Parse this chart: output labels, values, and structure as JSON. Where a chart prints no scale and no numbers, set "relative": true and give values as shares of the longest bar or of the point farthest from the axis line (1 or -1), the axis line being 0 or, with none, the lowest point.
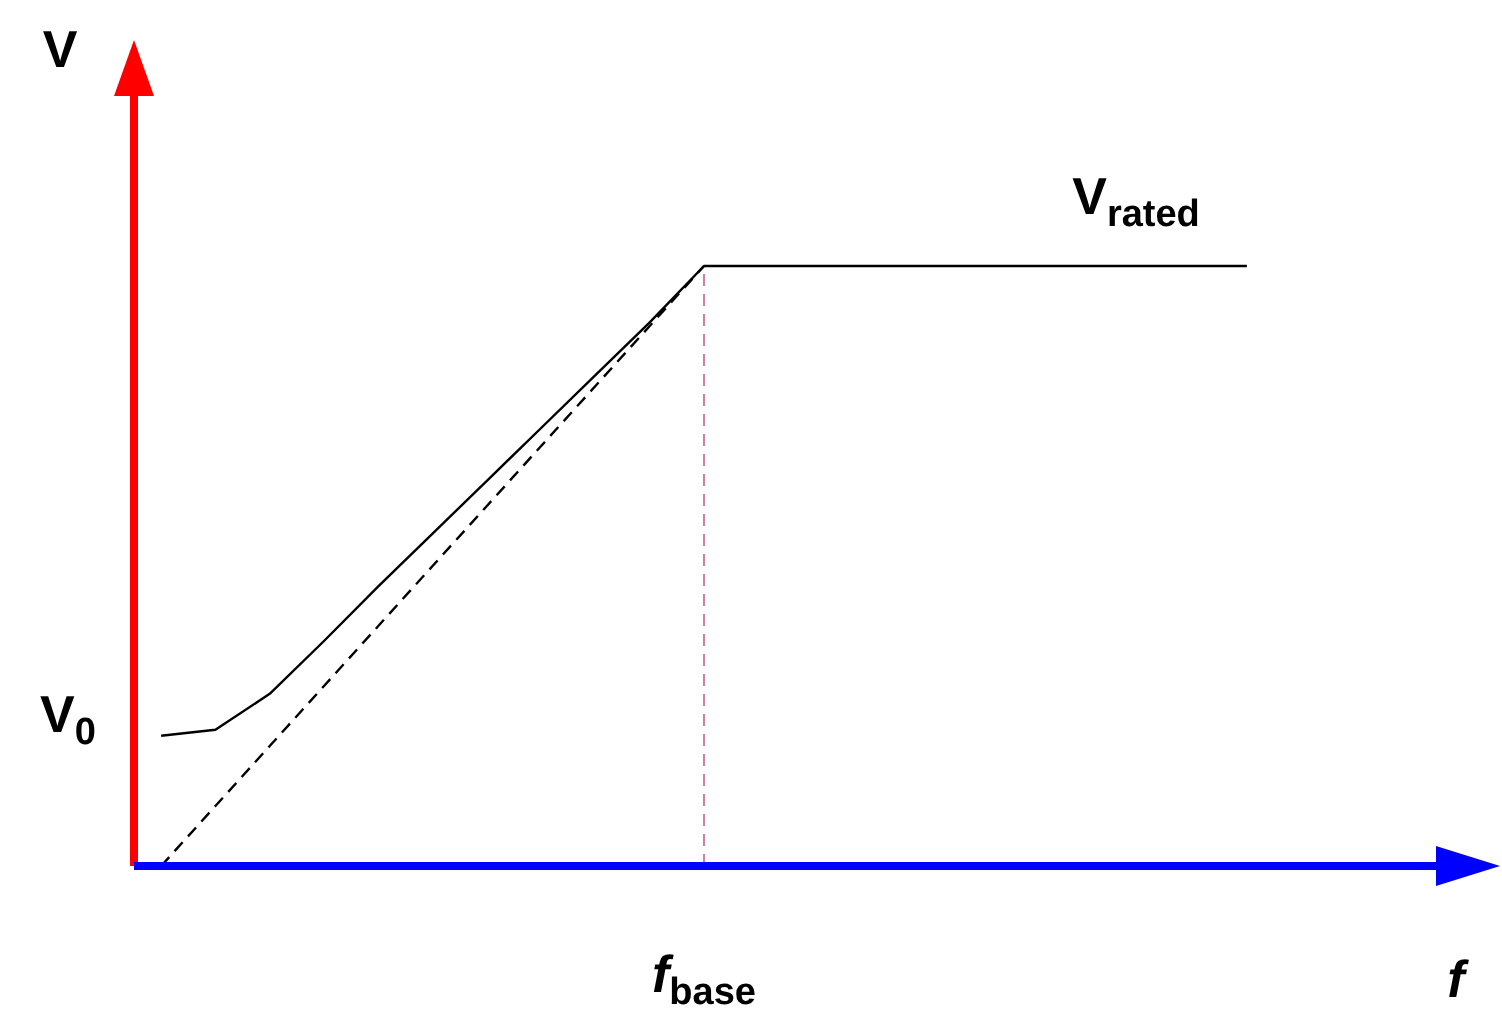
{
  "chart_data": {
    "type": "line",
    "relative": true,
    "xlabel": "f",
    "ylabel": "V",
    "categories": [
      null,
      null,
      null,
      null,
      null,
      null,
      null,
      null,
      null,
      null,
      null,
      null,
      null,
      null,
      null,
      null,
      null,
      null,
      null,
      null,
      null
    ],
    "series": [
      {
        "color": "#000000",
        "line_style": "solid",
        "values": [
          0.217,
          0.227,
          0.287,
          0.375,
          0.466,
          0.554,
          0.642,
          0.73,
          0.818,
          0.906,
          1,
          1,
          1,
          1,
          1,
          1,
          1,
          1,
          1,
          1,
          1
        ]
      },
      {
        "color": "#000000",
        "line_style": "dashed",
        "values": [
          0,
          0.1,
          0.2,
          0.3,
          0.4,
          0.5,
          0.6,
          0.7,
          0.8,
          0.9,
          1,
          null,
          null,
          null,
          null,
          null,
          null,
          null,
          null,
          null,
          null
        ]
      }
    ],
    "ref_lines": [
      {
        "axis": "x",
        "label": "f$_{base}$",
        "color": "#d080a0",
        "line_style": "dashed"
      }
    ],
    "annotations": [
      "V$_{0}$",
      {
        "text": "V$_{rated}$",
        "y": 1
      }
    ],
    "grid": false
  }
}
